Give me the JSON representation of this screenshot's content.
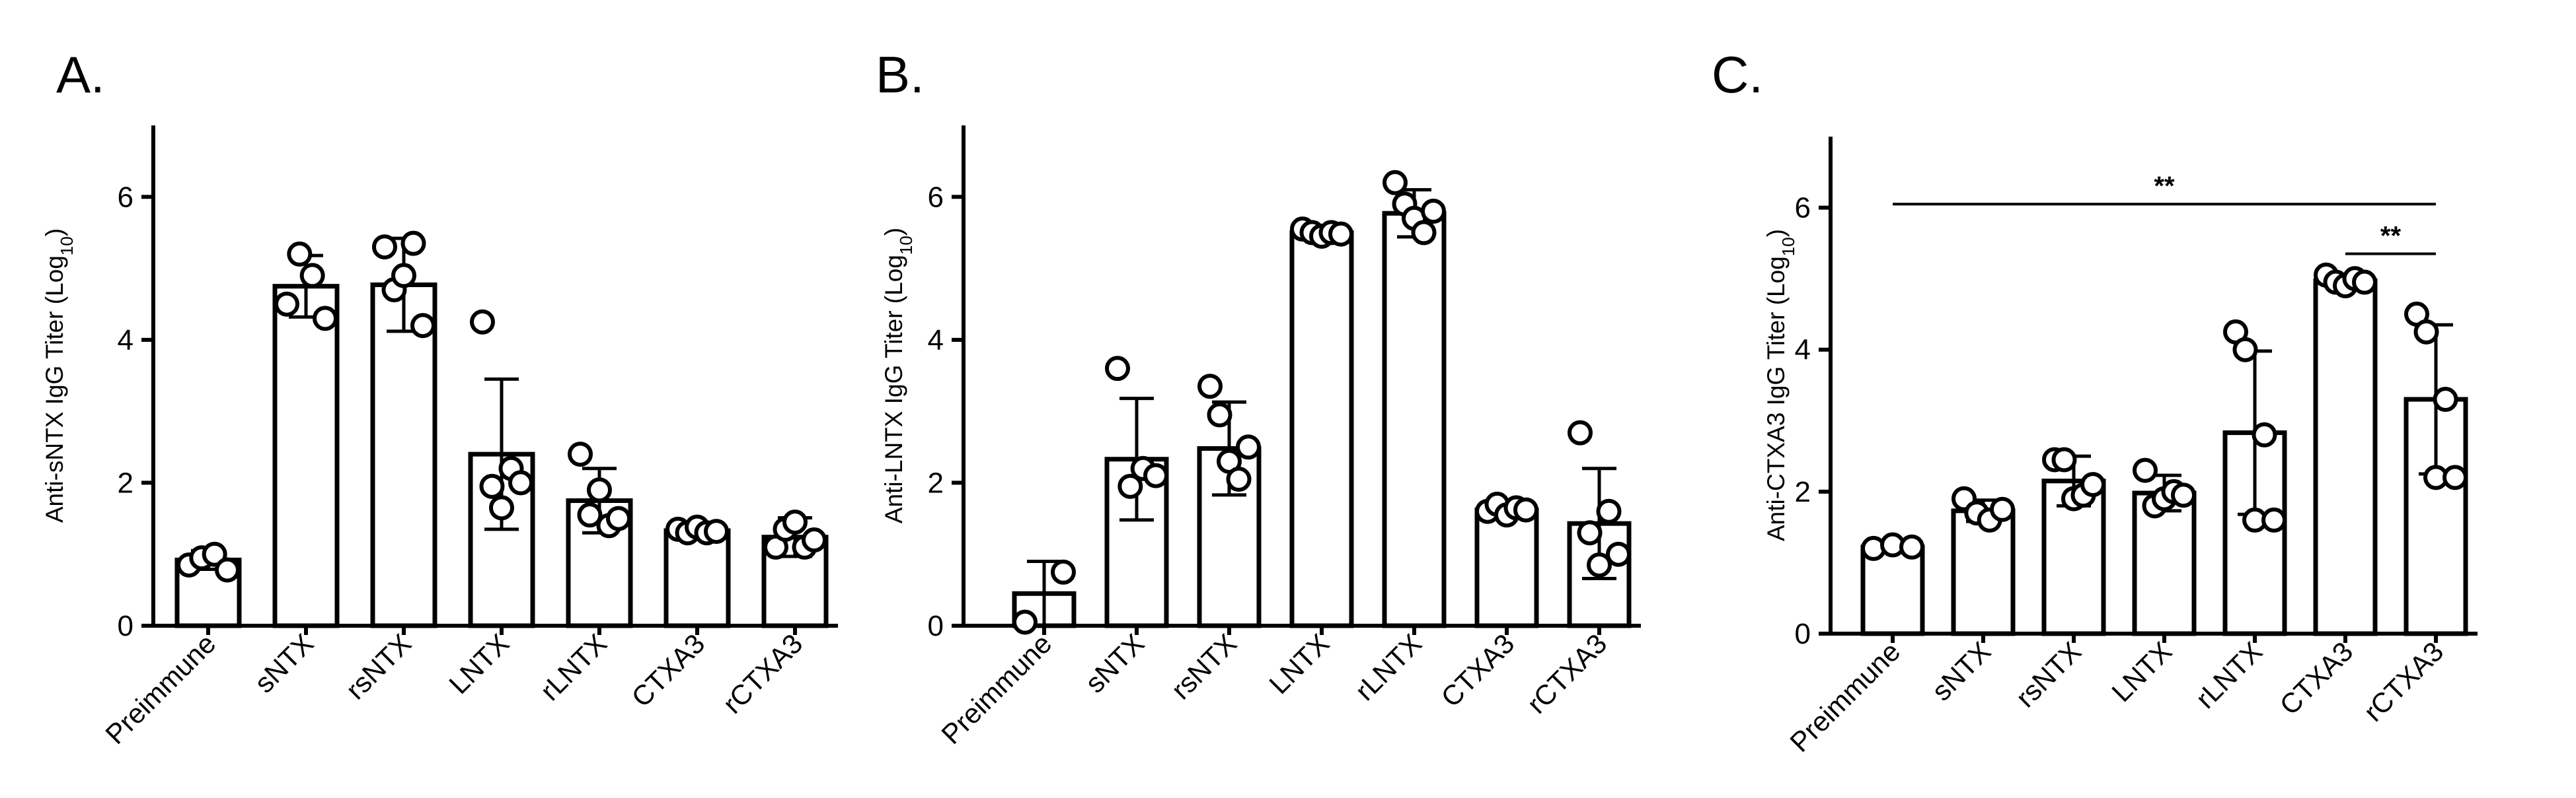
{
  "chart_data": [
    {
      "type": "bar",
      "panel": "A.",
      "ylabel": "Anti-sNTX IgG Titer (Log",
      "ylabel_sub": "10",
      "ylabel_end": ")",
      "ylim": [
        0,
        7
      ],
      "yticks": [
        "0",
        "2",
        "4",
        "6"
      ],
      "categories": [
        "Preimmune",
        "sNTX",
        "rsNTX",
        "LNTX",
        "rLNTX",
        "CTXA3",
        "rCTXA3"
      ],
      "values": [
        0.92,
        4.75,
        4.77,
        2.4,
        1.75,
        1.33,
        1.24
      ],
      "error": [
        0.13,
        0.43,
        0.65,
        1.05,
        0.45,
        0.08,
        0.27
      ],
      "points": [
        [
          0.85,
          0.95,
          1.0,
          0.78
        ],
        [
          4.5,
          5.2,
          4.9,
          4.3
        ],
        [
          5.3,
          4.7,
          4.9,
          5.35,
          4.2
        ],
        [
          4.25,
          1.95,
          1.65,
          2.2,
          2.0
        ],
        [
          2.4,
          1.55,
          1.9,
          1.4,
          1.5
        ],
        [
          1.35,
          1.3,
          1.38,
          1.3,
          1.32
        ],
        [
          1.1,
          1.35,
          1.45,
          1.1,
          1.2
        ]
      ],
      "significance": []
    },
    {
      "type": "bar",
      "panel": "B.",
      "ylabel": "Anti-LNTX IgG Titer (Log",
      "ylabel_sub": "10",
      "ylabel_end": ")",
      "ylim": [
        0,
        7
      ],
      "yticks": [
        "0",
        "2",
        "4",
        "6"
      ],
      "categories": [
        "Preimmune",
        "sNTX",
        "rsNTX",
        "LNTX",
        "rLNTX",
        "CTXA3",
        "rCTXA3"
      ],
      "values": [
        0.45,
        2.33,
        2.48,
        5.5,
        5.77,
        1.62,
        1.43
      ],
      "error": [
        0.45,
        0.85,
        0.65,
        0.1,
        0.33,
        0.12,
        0.77
      ],
      "points": [
        [
          0.05,
          0.75
        ],
        [
          3.6,
          1.95,
          2.2,
          2.1
        ],
        [
          3.35,
          2.95,
          2.3,
          2.05,
          2.5
        ],
        [
          5.55,
          5.5,
          5.45,
          5.5,
          5.48
        ],
        [
          6.2,
          5.9,
          5.7,
          5.5,
          5.8
        ],
        [
          1.6,
          1.7,
          1.55,
          1.65,
          1.62
        ],
        [
          2.7,
          1.3,
          0.85,
          1.6,
          1.0
        ]
      ],
      "significance": []
    },
    {
      "type": "bar",
      "panel": "C.",
      "ylabel": "Anti-CTXA3 IgG Titer (Log",
      "ylabel_sub": "10",
      "ylabel_end": ")",
      "ylim": [
        0,
        7
      ],
      "yticks": [
        "0",
        "2",
        "4",
        "6"
      ],
      "categories": [
        "Preimmune",
        "sNTX",
        "rsNTX",
        "LNTX",
        "rLNTX",
        "CTXA3",
        "rCTXA3"
      ],
      "values": [
        1.22,
        1.73,
        2.15,
        1.98,
        2.83,
        4.97,
        3.3
      ],
      "error": [
        0.05,
        0.15,
        0.35,
        0.25,
        1.15,
        0.07,
        1.05
      ],
      "points": [
        [
          1.2,
          1.25,
          1.22
        ],
        [
          1.9,
          1.7,
          1.6,
          1.75
        ],
        [
          2.45,
          2.45,
          1.9,
          1.95,
          2.1
        ],
        [
          2.3,
          1.8,
          1.9,
          2.0,
          1.95
        ],
        [
          4.25,
          4.0,
          1.6,
          2.8,
          1.6
        ],
        [
          5.05,
          4.95,
          4.9,
          5.0,
          4.95
        ],
        [
          4.5,
          4.25,
          2.2,
          3.3,
          2.2
        ]
      ],
      "significance": [
        {
          "from": 0,
          "to": 6,
          "y": 6.05,
          "label": "**"
        },
        {
          "from": 5,
          "to": 6,
          "y": 5.35,
          "label": "**"
        }
      ]
    }
  ]
}
